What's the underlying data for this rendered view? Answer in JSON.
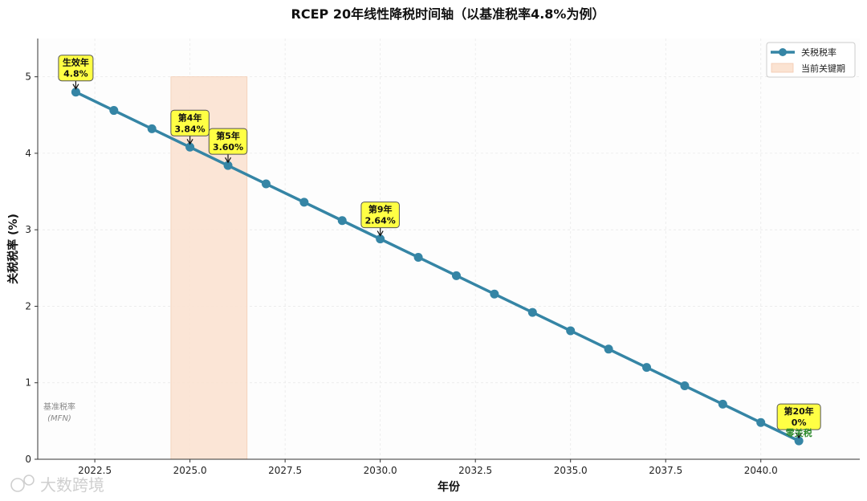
{
  "chart_data": {
    "type": "line",
    "title": "RCEP 20年线性降税时间轴（以基准税率4.8%为例）",
    "xlabel": "年份",
    "ylabel": "关税税率 (%)",
    "xlim": [
      2021.0,
      2042.6
    ],
    "ylim": [
      0,
      5.5
    ],
    "xticks": [
      "2022.5",
      "2025.0",
      "2027.5",
      "2030.0",
      "2032.5",
      "2035.0",
      "2037.5",
      "2040.0"
    ],
    "xtick_values": [
      2022.5,
      2025.0,
      2027.5,
      2030.0,
      2032.5,
      2035.0,
      2037.5,
      2040.0
    ],
    "yticks": [
      "0",
      "1",
      "2",
      "3",
      "4",
      "5"
    ],
    "ytick_values": [
      0,
      1,
      2,
      3,
      4,
      5
    ],
    "grid": true,
    "series": [
      {
        "name": "关税税率",
        "color": "#3585a5",
        "x": [
          2022,
          2023,
          2024,
          2025,
          2026,
          2027,
          2028,
          2029,
          2030,
          2031,
          2032,
          2033,
          2034,
          2035,
          2036,
          2037,
          2038,
          2039,
          2040,
          2041
        ],
        "y": [
          4.8,
          4.56,
          4.32,
          4.08,
          3.84,
          3.6,
          3.36,
          3.12,
          2.88,
          2.64,
          2.4,
          2.16,
          1.92,
          1.68,
          1.44,
          1.2,
          0.96,
          0.72,
          0.48,
          0.24
        ]
      }
    ],
    "highlight_span": {
      "name": "当前关键期",
      "x_start": 2024.5,
      "x_end": 2026.5,
      "y_top": 5.0,
      "color": "#fbe3d2"
    },
    "legend": {
      "position": "top-right",
      "entries": [
        "关税税率",
        "当前关键期"
      ]
    },
    "annotations": [
      {
        "line1": "生效年",
        "line2": "4.8%",
        "x": 2022,
        "y": 4.8
      },
      {
        "line1": "第4年",
        "line2": "3.84%",
        "x": 2025,
        "y": 4.08
      },
      {
        "line1": "第5年",
        "line2": "3.60%",
        "x": 2026,
        "y": 3.84
      },
      {
        "line1": "第9年",
        "line2": "2.64%",
        "x": 2030,
        "y": 2.88
      },
      {
        "line1": "第20年",
        "line2": "0%",
        "x": 2041,
        "y": 0.24
      }
    ],
    "baseline_label": {
      "line1": "基准税率",
      "line2": "(MFN)"
    },
    "zero_label": "零关税"
  },
  "watermark": "大数跨境"
}
